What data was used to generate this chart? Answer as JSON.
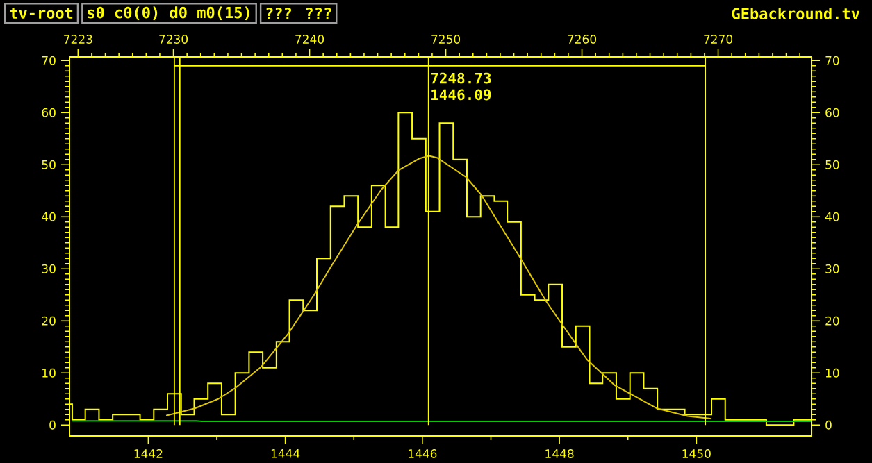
{
  "chart_data": {
    "type": "histogram",
    "bins": [
      1440.85,
      1440.89,
      1441.08,
      1441.28,
      1441.48,
      1441.68,
      1441.88,
      1442.08,
      1442.28,
      1442.48,
      1442.67,
      1442.87,
      1443.07,
      1443.27,
      1443.47,
      1443.67,
      1443.87,
      1444.06,
      1444.26,
      1444.46,
      1444.66,
      1444.86,
      1445.06,
      1445.26,
      1445.46,
      1445.65,
      1445.85,
      1446.05,
      1446.25,
      1446.45,
      1446.65,
      1446.85,
      1447.05,
      1447.24,
      1447.44,
      1447.64,
      1447.84,
      1448.04,
      1448.24,
      1448.44,
      1448.63,
      1448.83,
      1449.03,
      1449.23,
      1449.43,
      1449.63,
      1449.83,
      1450.03,
      1450.22,
      1450.42,
      1450.62,
      1450.82,
      1451.02,
      1451.22,
      1451.42,
      1451.62,
      1451.68
    ],
    "values": [
      4,
      1,
      3,
      1,
      2,
      2,
      1,
      3,
      6,
      2,
      5,
      8,
      2,
      10,
      14,
      11,
      16,
      24,
      22,
      32,
      42,
      44,
      38,
      46,
      38,
      60,
      55,
      41,
      58,
      51,
      40,
      44,
      43,
      39,
      25,
      24,
      27,
      15,
      19,
      8,
      10,
      5,
      10,
      7,
      3,
      3,
      2,
      2,
      5,
      1,
      1,
      1,
      0,
      0,
      1,
      1
    ],
    "color": "#ffff00",
    "series": [
      {
        "type": "line",
        "color": "#e0c800",
        "x": [
          1442.26,
          1442.68,
          1443.02,
          1443.27,
          1443.65,
          1444.04,
          1444.42,
          1444.67,
          1445.04,
          1445.4,
          1445.65,
          1445.96,
          1446.1,
          1446.22,
          1446.64,
          1446.86,
          1447.42,
          1447.8,
          1448.03,
          1448.4,
          1448.81,
          1449.42,
          1449.87,
          1450.22
        ],
        "values": [
          1.8,
          3.2,
          5,
          7.1,
          11.2,
          17.5,
          25,
          30.5,
          38.3,
          45.2,
          48.9,
          51.2,
          51.7,
          51.3,
          47.6,
          44.2,
          32.3,
          23.9,
          19.5,
          12.6,
          7.6,
          3.2,
          1.7,
          1.2
        ]
      },
      {
        "type": "line",
        "color": "#00cc00",
        "x": [
          1440.89,
          1442.7,
          1442.78,
          1451.68
        ],
        "values": [
          0.8,
          0.8,
          0.7,
          0.7
        ]
      },
      {
        "type": "line",
        "color": "#ffff00",
        "x": [
          1442.38,
          1450.13
        ],
        "values": [
          69,
          69
        ]
      }
    ],
    "xlim": [
      1440.85,
      1451.68
    ],
    "ylim": [
      -2.1,
      70.7
    ],
    "xticks": [
      1442,
      1444,
      1446,
      1448,
      1450
    ],
    "yticks": [
      0,
      10,
      20,
      30,
      40,
      50,
      60,
      70
    ],
    "x2lim": [
      7222.37,
      7276.86
    ],
    "x2ticks": [
      7223,
      7230,
      7240,
      7250,
      7260,
      7270
    ],
    "y2lim": [
      -2.1,
      70.7
    ],
    "y2ticks": [
      0,
      10,
      20,
      30,
      40,
      50,
      60,
      70
    ],
    "ref_lines": [
      {
        "axis": "x",
        "value": 1442.38,
        "color": "#ffff00"
      },
      {
        "axis": "x",
        "value": 1442.46,
        "color": "#ffff00"
      },
      {
        "axis": "x",
        "value": 1450.13,
        "color": "#ffff00"
      },
      {
        "axis": "x",
        "value": 1446.09,
        "label": "1446.09",
        "color": "#ffff00"
      }
    ],
    "annotations": [
      "tv-root",
      "s0 c0(0) d0 m0(15)",
      "??? ???",
      "GEbackround.tv",
      {
        "text": "7248.73",
        "x": 1446.09,
        "y": 68
      }
    ]
  }
}
